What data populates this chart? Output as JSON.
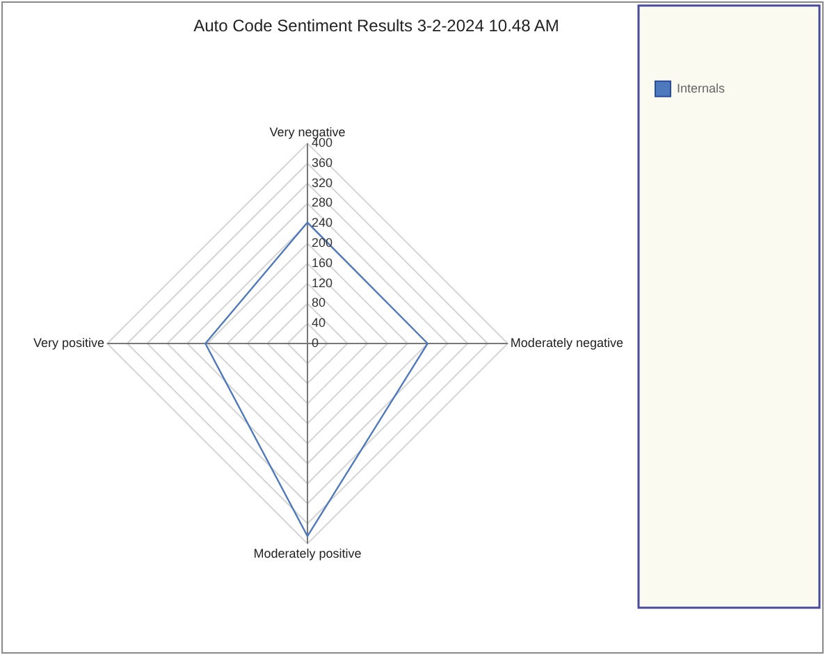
{
  "chart_data": {
    "type": "radar",
    "title": "Auto Code Sentiment Results 3-2-2024 10.48 AM",
    "categories": [
      "Very negative",
      "Moderately negative",
      "Moderately positive",
      "Very positive"
    ],
    "series": [
      {
        "name": "Internals",
        "color": "#4f79bd",
        "values": [
          242,
          240,
          385,
          204
        ]
      }
    ],
    "ylim": [
      0,
      400
    ],
    "yticks": [
      0,
      40,
      80,
      120,
      160,
      200,
      240,
      280,
      320,
      360,
      400
    ],
    "grid": true,
    "legend": "top right",
    "marker": "none"
  }
}
